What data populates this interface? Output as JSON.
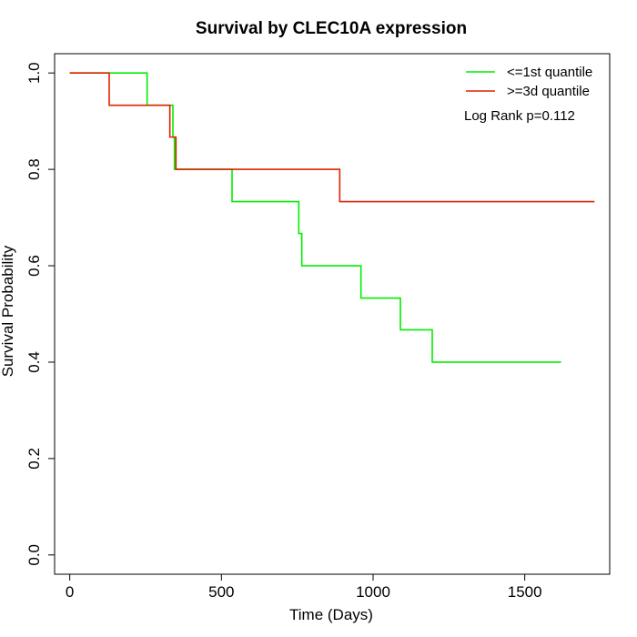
{
  "chart_data": {
    "type": "line",
    "title": "Survival by CLEC10A expression",
    "xlabel": "Time (Days)",
    "ylabel": "Survival Probability",
    "xlim": [
      -50,
      1780
    ],
    "ylim": [
      -0.04,
      1.04
    ],
    "xticks": [
      0,
      500,
      1000,
      1500
    ],
    "yticks": [
      0.0,
      0.2,
      0.4,
      0.6,
      0.8,
      1.0
    ],
    "xtick_labels": [
      "0",
      "500",
      "1000",
      "1500"
    ],
    "ytick_labels": [
      "0.0",
      "0.2",
      "0.4",
      "0.6",
      "0.8",
      "1.0"
    ],
    "grid": false,
    "legend_position": "top-right",
    "annotation": "Log Rank p=0.112",
    "series": [
      {
        "name": "<=1st quantile",
        "color": "#00ee00",
        "step": "post",
        "x": [
          0,
          255,
          340,
          345,
          535,
          755,
          765,
          960,
          1090,
          1195,
          1620
        ],
        "y": [
          1.0,
          0.933,
          0.867,
          0.8,
          0.733,
          0.667,
          0.6,
          0.533,
          0.467,
          0.4,
          0.4
        ]
      },
      {
        "name": ">=3d quantile",
        "color": "#dd2200",
        "step": "post",
        "x": [
          0,
          130,
          330,
          350,
          890,
          1730
        ],
        "y": [
          1.0,
          0.933,
          0.867,
          0.8,
          0.733,
          0.733
        ]
      }
    ]
  }
}
